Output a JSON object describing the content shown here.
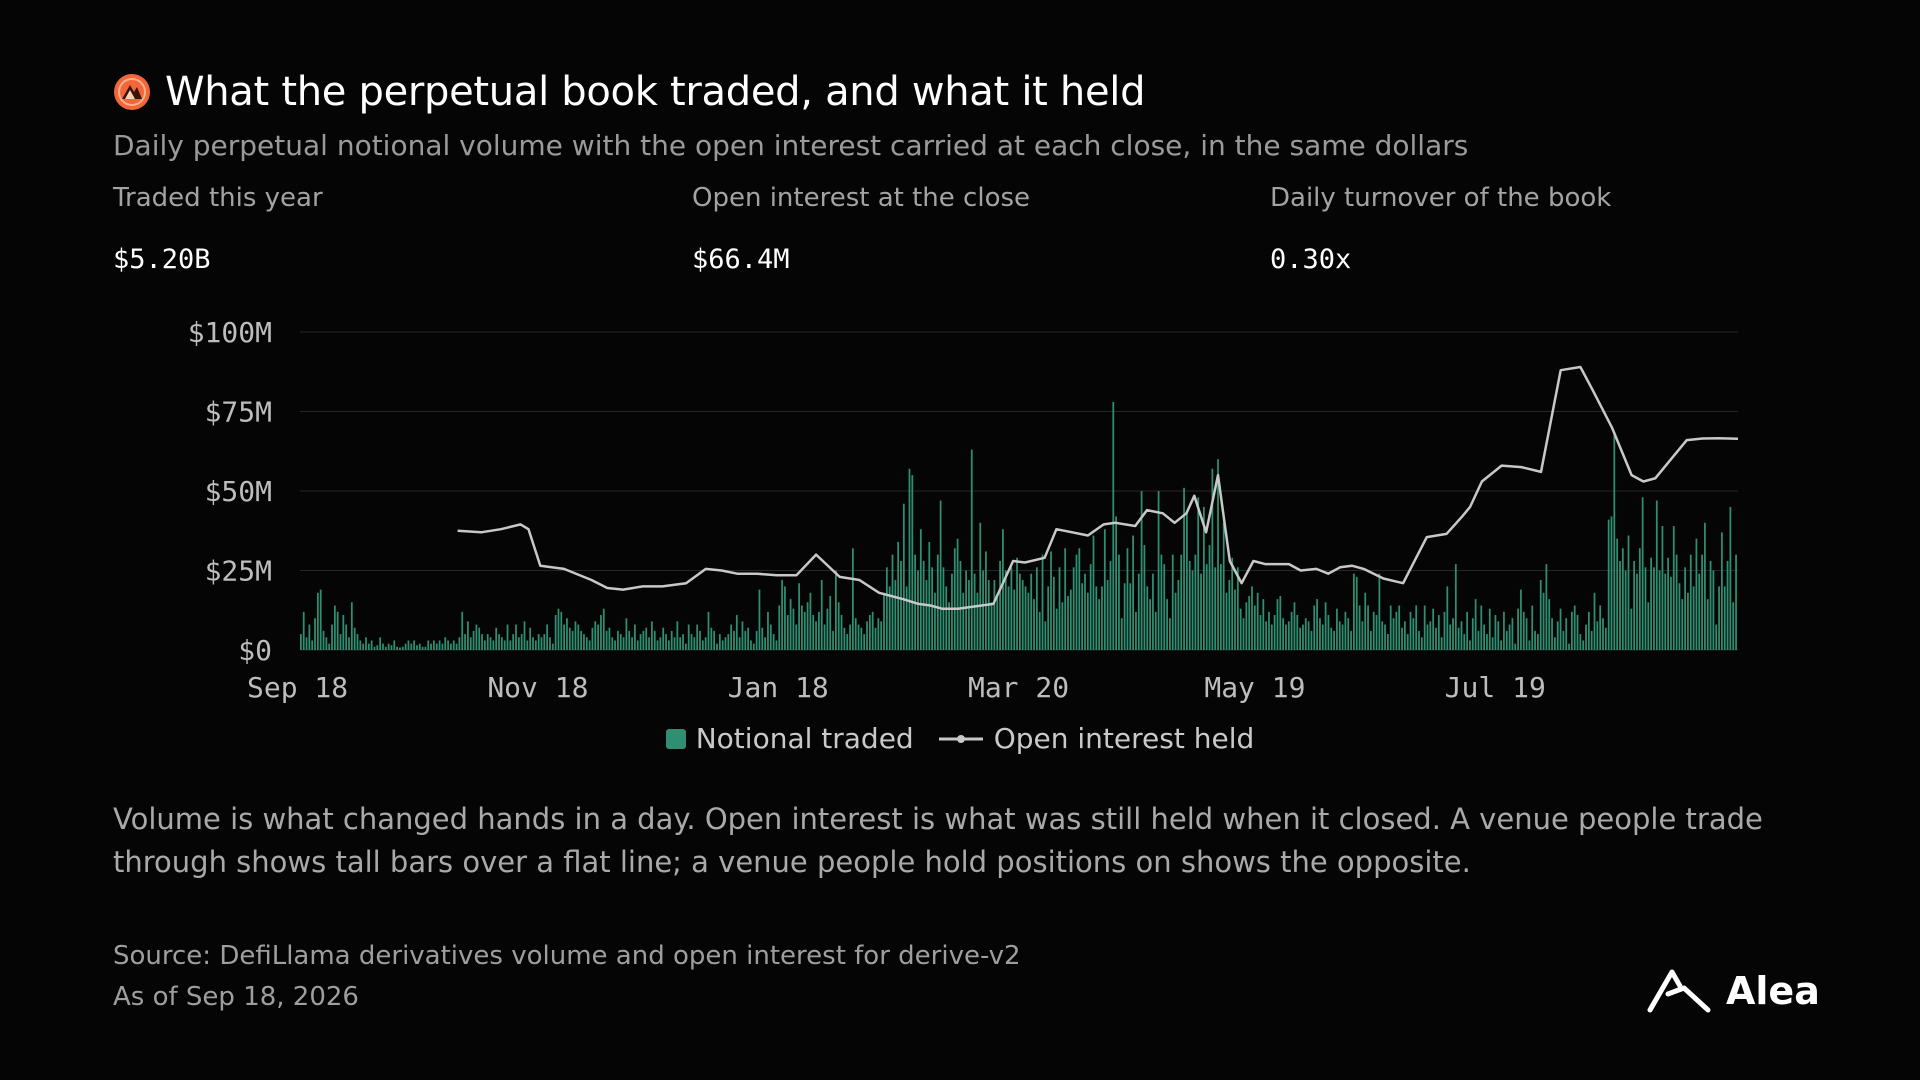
{
  "header": {
    "title": "What the perpetual book traded, and what it held",
    "subtitle": "Daily perpetual notional volume with the open interest carried at each close, in the same dollars"
  },
  "stats": [
    {
      "label": "Traded this year",
      "value": "$5.20B"
    },
    {
      "label": "Open interest at the close",
      "value": "$66.4M"
    },
    {
      "label": "Daily turnover of the book",
      "value": "0.30x"
    }
  ],
  "colors": {
    "bars": "#2f8f72",
    "line": "#c8c8c8",
    "grid": "#262626",
    "accent": "#f2663a"
  },
  "chart_data": {
    "type": "bar",
    "x_start": "2025-09-18",
    "x_end": "2026-09-18",
    "x_tick_labels": [
      "Sep 18",
      "Nov 18",
      "Jan 18",
      "Mar 20",
      "May 19",
      "Jul 19"
    ],
    "x_tick_dates": [
      "2025-09-18",
      "2025-11-18",
      "2026-01-18",
      "2026-03-20",
      "2026-05-19",
      "2026-07-19"
    ],
    "y_ticks": [
      0,
      25,
      50,
      75,
      100
    ],
    "y_tick_labels": [
      "$0",
      "$25M",
      "$50M",
      "$75M",
      "$100M"
    ],
    "ylim": [
      0,
      100
    ],
    "y_unit": "USD millions",
    "grid": true,
    "legend_position": "bottom-center",
    "series": [
      {
        "name": "Notional traded",
        "type": "bar",
        "values": [
          5.0,
          12.0,
          4.0,
          8.0,
          3.0,
          10.0,
          18.0,
          19.0,
          6.0,
          4.0,
          2.0,
          8.0,
          14.0,
          12.0,
          5.0,
          11.0,
          8.0,
          4.0,
          15.0,
          7.0,
          5.0,
          3.0,
          2.0,
          4.0,
          2.0,
          3.0,
          1.0,
          1.5,
          4.0,
          2.0,
          1.0,
          2.0,
          1.5,
          3.0,
          1.0,
          0.8,
          1.0,
          2.0,
          3.0,
          2.0,
          3.0,
          1.5,
          2.0,
          1.0,
          1.0,
          3.0,
          2.0,
          3.0,
          2.0,
          3.0,
          2.0,
          4.0,
          3.0,
          2.0,
          3.0,
          2.0,
          4.0,
          12.0,
          5.0,
          9.0,
          4.0,
          6.0,
          8.0,
          7.0,
          5.0,
          3.0,
          5.0,
          4.0,
          3.0,
          7.0,
          5.0,
          4.0,
          3.0,
          8.0,
          3.0,
          5.0,
          8.0,
          4.0,
          5.0,
          9.0,
          3.0,
          7.0,
          4.0,
          3.0,
          5.0,
          4.0,
          5.0,
          8.0,
          4.0,
          2.0,
          11.0,
          13.0,
          12.0,
          8.0,
          10.0,
          7.0,
          6.0,
          9.0,
          8.0,
          6.0,
          5.0,
          4.0,
          3.0,
          7.0,
          9.0,
          8.0,
          11.0,
          13.0,
          6.0,
          7.0,
          4.0,
          3.0,
          6.0,
          5.0,
          4.0,
          10.0,
          6.0,
          4.0,
          8.0,
          3.0,
          5.0,
          6.0,
          7.0,
          4.0,
          9.0,
          6.0,
          3.0,
          4.0,
          7.0,
          5.0,
          3.0,
          6.0,
          4.0,
          9.0,
          4.0,
          5.0,
          2.0,
          8.0,
          5.0,
          4.0,
          8.0,
          6.0,
          3.0,
          4.0,
          12.0,
          7.0,
          6.0,
          2.0,
          5.0,
          3.0,
          4.0,
          5.0,
          8.0,
          6.0,
          11.0,
          4.0,
          9.0,
          6.0,
          7.0,
          3.0,
          2.0,
          6.0,
          19.0,
          7.0,
          4.0,
          12.0,
          8.0,
          5.0,
          3.0,
          14.0,
          22.0,
          20.0,
          11.0,
          16.0,
          13.0,
          8.0,
          21.0,
          14.0,
          12.0,
          15.0,
          18.0,
          11.0,
          9.0,
          12.0,
          22.0,
          8.0,
          13.0,
          17.0,
          6.0,
          25.0,
          15.0,
          11.0,
          7.0,
          5.0,
          8.0,
          32.0,
          10.0,
          8.0,
          7.0,
          5.0,
          9.0,
          11.0,
          12.0,
          7.0,
          10.0,
          9.0,
          18.0,
          26.0,
          20.0,
          30.0,
          22.0,
          34.0,
          28.0,
          46.0,
          20.0,
          57.0,
          55.0,
          30.0,
          25.0,
          38.0,
          28.0,
          22.0,
          34.0,
          26.0,
          18.0,
          30.0,
          47.0,
          26.0,
          20.0,
          15.0,
          24.0,
          32.0,
          35.0,
          28.0,
          18.0,
          25.0,
          22.0,
          63.0,
          24.0,
          18.0,
          40.0,
          25.0,
          31.0,
          22.0,
          15.0,
          22.0,
          17.0,
          28.0,
          38.0,
          25.0,
          20.0,
          26.0,
          19.0,
          29.0,
          24.0,
          22.0,
          20.0,
          18.0,
          24.0,
          16.0,
          26.0,
          12.0,
          30.0,
          9.0,
          20.0,
          31.0,
          23.0,
          13.0,
          26.0,
          15.0,
          32.0,
          17.0,
          19.0,
          26.0,
          30.0,
          32.0,
          21.0,
          24.0,
          18.0,
          27.0,
          36.0,
          20.0,
          16.0,
          20.0,
          38.0,
          22.0,
          28.0,
          78.0,
          42.0,
          30.0,
          10.0,
          21.0,
          32.0,
          21.0,
          36.0,
          12.0,
          24.0,
          50.0,
          33.0,
          20.0,
          16.0,
          24.0,
          12.0,
          50.0,
          30.0,
          27.0,
          16.0,
          10.0,
          30.0,
          18.0,
          22.0,
          30.0,
          51.0,
          43.0,
          28.0,
          25.0,
          30.0,
          48.0,
          24.0,
          45.0,
          27.0,
          33.0,
          57.0,
          26.0,
          60.0,
          27.0,
          40.0,
          18.0,
          22.0,
          29.0,
          19.0,
          26.0,
          13.0,
          10.0,
          15.0,
          17.0,
          20.0,
          14.0,
          18.0,
          11.0,
          16.0,
          9.0,
          12.0,
          8.0,
          11.0,
          16.0,
          17.0,
          10.0,
          8.0,
          9.0,
          12.0,
          15.0,
          11.0,
          7.0,
          8.0,
          10.0,
          9.0,
          6.0,
          14.0,
          16.0,
          10.0,
          8.0,
          15.0,
          11.0,
          7.0,
          6.0,
          13.0,
          9.0,
          8.0,
          12.0,
          10.0,
          6.0,
          24.0,
          23.0,
          14.0,
          9.0,
          18.0,
          14.0,
          6.0,
          12.0,
          11.0,
          24.0,
          9.0,
          8.0,
          5.0,
          14.0,
          10.0,
          12.0,
          14.0,
          7.0,
          9.0,
          5.0,
          12.0,
          10.0,
          14.0,
          6.0,
          4.0,
          14.0,
          8.0,
          9.0,
          13.0,
          7.0,
          11.0,
          4.0,
          12.0,
          20.0,
          8.0,
          10.0,
          27.0,
          7.0,
          9.0,
          5.0,
          12.0,
          3.0,
          10.0,
          16.0,
          6.0,
          14.0,
          8.0,
          5.0,
          13.0,
          4.0,
          11.0,
          9.0,
          3.0,
          12.0,
          6.0,
          8.0,
          10.0,
          2.0,
          13.0,
          19.0,
          12.0,
          10.0,
          3.0,
          14.0,
          6.0,
          5.0,
          22.0,
          18.0,
          27.0,
          16.0,
          10.0,
          4.0,
          9.0,
          13.0,
          6.0,
          10.0,
          2.0,
          12.0,
          14.0,
          11.0,
          5.0,
          3.0,
          8.0,
          12.0,
          6.0,
          18.0,
          9.0,
          14.0,
          10.0,
          7.0,
          41.0,
          42.0,
          68.0,
          35.0,
          28.0,
          32.0,
          25.0,
          36.0,
          13.0,
          28.0,
          24.0,
          32.0,
          48.0,
          26.0,
          15.0,
          29.0,
          26.0,
          47.0,
          25.0,
          39.0,
          24.0,
          29.0,
          23.0,
          39.0,
          30.0,
          21.0,
          16.0,
          26.0,
          18.0,
          30.0,
          20.0,
          35.0,
          24.0,
          30.0,
          40.0,
          16.0,
          28.0,
          25.0,
          8.0,
          20.0,
          37.0,
          20.0,
          28.0,
          45.0,
          15.0,
          30.0
        ]
      },
      {
        "name": "Open interest held",
        "type": "line",
        "x": [
          "2025-10-28",
          "2025-11-03",
          "2025-11-08",
          "2025-11-13",
          "2025-11-15",
          "2025-11-18",
          "2025-11-24",
          "2025-12-01",
          "2025-12-05",
          "2025-12-09",
          "2025-12-14",
          "2025-12-19",
          "2025-12-25",
          "2025-12-30",
          "2026-01-03",
          "2026-01-07",
          "2026-01-12",
          "2026-01-17",
          "2026-01-22",
          "2026-01-27",
          "2026-02-02",
          "2026-02-07",
          "2026-02-12",
          "2026-02-18",
          "2026-02-22",
          "2026-02-25",
          "2026-02-28",
          "2026-03-04",
          "2026-03-10",
          "2026-03-13",
          "2026-03-18",
          "2026-03-21",
          "2026-03-26",
          "2026-03-29",
          "2026-04-02",
          "2026-04-06",
          "2026-04-10",
          "2026-04-13",
          "2026-04-18",
          "2026-04-21",
          "2026-04-25",
          "2026-04-28",
          "2026-05-01",
          "2026-05-03",
          "2026-05-06",
          "2026-05-09",
          "2026-05-12",
          "2026-05-15",
          "2026-05-18",
          "2026-05-21",
          "2026-05-24",
          "2026-05-27",
          "2026-05-30",
          "2026-06-03",
          "2026-06-06",
          "2026-06-09",
          "2026-06-12",
          "2026-06-15",
          "2026-06-20",
          "2026-06-25",
          "2026-07-01",
          "2026-07-06",
          "2026-07-10",
          "2026-07-12",
          "2026-07-15",
          "2026-07-20",
          "2026-07-25",
          "2026-07-30",
          "2026-08-04",
          "2026-08-09",
          "2026-08-12",
          "2026-08-17",
          "2026-08-22",
          "2026-08-25",
          "2026-08-28",
          "2026-09-01",
          "2026-09-05",
          "2026-09-09",
          "2026-09-13",
          "2026-09-18"
        ],
        "values": [
          37.5,
          37.0,
          38.0,
          39.5,
          38.0,
          26.5,
          25.5,
          22.0,
          19.5,
          19.0,
          20.0,
          20.0,
          21.0,
          25.5,
          25.0,
          24.0,
          24.0,
          23.5,
          23.5,
          30.0,
          23.0,
          22.0,
          18.0,
          16.0,
          14.5,
          14.0,
          13.0,
          13.0,
          14.0,
          14.5,
          28.0,
          27.5,
          29.0,
          38.0,
          37.0,
          36.0,
          39.5,
          40.0,
          39.0,
          44.0,
          43.0,
          40.0,
          43.0,
          48.5,
          37.0,
          55.0,
          28.0,
          21.0,
          28.0,
          27.0,
          27.0,
          27.0,
          25.0,
          25.5,
          24.0,
          26.0,
          26.5,
          25.5,
          22.5,
          21.0,
          35.5,
          36.5,
          42.0,
          45.0,
          53.0,
          58.0,
          57.5,
          56.0,
          88.0,
          89.0,
          82.0,
          70.0,
          55.0,
          53.0,
          54.0,
          60.0,
          66.0,
          66.5,
          66.6,
          66.4
        ]
      }
    ]
  },
  "legend": [
    {
      "label": "Notional traded"
    },
    {
      "label": "Open interest held"
    }
  ],
  "note": "Volume is what changed hands in a day. Open interest is what was still held when it closed. A venue people trade through shows tall bars over a flat line; a venue people hold positions on shows the opposite.",
  "source": {
    "line1": "Source: DefiLlama derivatives volume and open interest for derive-v2",
    "line2": "As of Sep 18, 2026"
  },
  "brand": {
    "name": "Alea",
    "icon": "alea-mark-icon"
  }
}
